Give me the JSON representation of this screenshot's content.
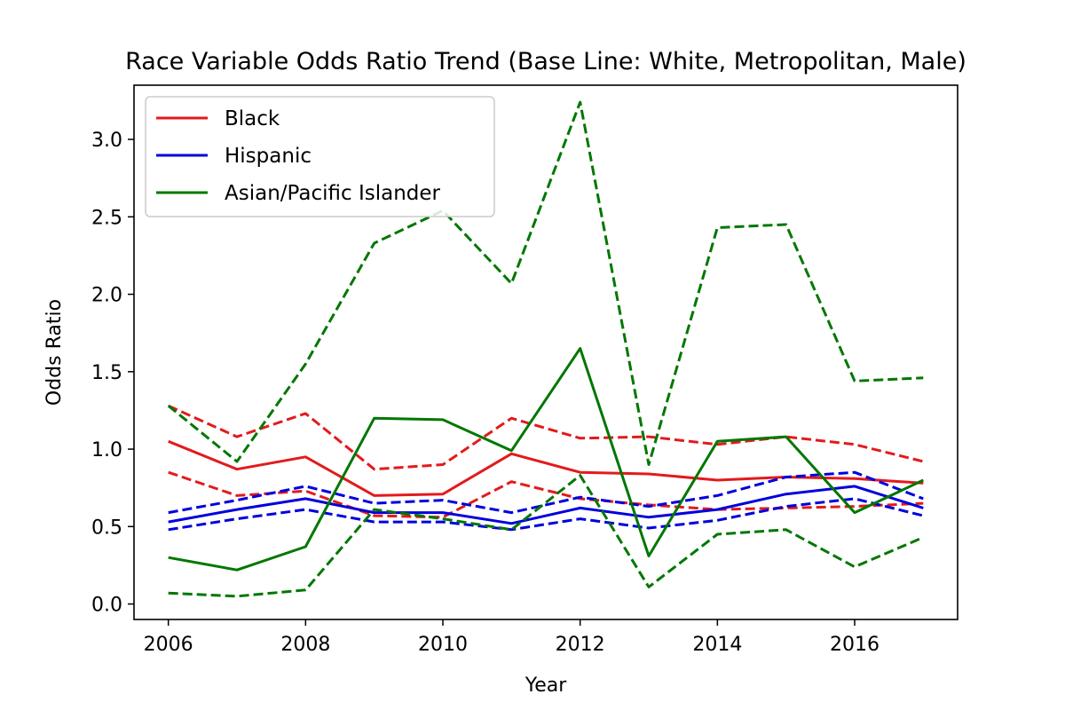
{
  "chart_data": {
    "type": "line",
    "title": "Race Variable Odds Ratio Trend (Base Line: White, Metropolitan, Male)",
    "xlabel": "Year",
    "ylabel": "Odds Ratio",
    "xlim": [
      2005.5,
      2017.5
    ],
    "ylim": [
      -0.1,
      3.35
    ],
    "xticks": [
      2006,
      2008,
      2010,
      2012,
      2014,
      2016
    ],
    "yticks": [
      0.0,
      0.5,
      1.0,
      1.5,
      2.0,
      2.5,
      3.0
    ],
    "xtick_labels": [
      "2006",
      "2008",
      "2010",
      "2012",
      "2014",
      "2016"
    ],
    "ytick_labels": [
      "0.0",
      "0.5",
      "1.0",
      "1.5",
      "2.0",
      "2.5",
      "3.0"
    ],
    "grid": false,
    "legend_position": "top-left",
    "x": [
      2006,
      2007,
      2008,
      2009,
      2010,
      2011,
      2012,
      2013,
      2014,
      2015,
      2016,
      2017
    ],
    "series": [
      {
        "name": "Black",
        "color": "#e31a1c",
        "style": "solid",
        "values": [
          1.05,
          0.87,
          0.95,
          0.7,
          0.71,
          0.97,
          0.85,
          0.84,
          0.8,
          0.82,
          0.81,
          0.78
        ]
      },
      {
        "name": "Black upper",
        "color": "#e31a1c",
        "style": "dashed",
        "values": [
          1.28,
          1.08,
          1.23,
          0.87,
          0.9,
          1.2,
          1.07,
          1.08,
          1.03,
          1.08,
          1.03,
          0.92
        ]
      },
      {
        "name": "Black lower",
        "color": "#e31a1c",
        "style": "dashed",
        "values": [
          0.85,
          0.7,
          0.73,
          0.57,
          0.56,
          0.79,
          0.68,
          0.64,
          0.61,
          0.62,
          0.63,
          0.65
        ]
      },
      {
        "name": "Hispanic",
        "color": "#0000dd",
        "style": "solid",
        "values": [
          0.53,
          0.61,
          0.68,
          0.59,
          0.59,
          0.52,
          0.62,
          0.56,
          0.61,
          0.71,
          0.76,
          0.62
        ]
      },
      {
        "name": "Hispanic upper",
        "color": "#0000dd",
        "style": "dashed",
        "values": [
          0.59,
          0.67,
          0.76,
          0.65,
          0.67,
          0.59,
          0.69,
          0.63,
          0.7,
          0.82,
          0.85,
          0.68
        ]
      },
      {
        "name": "Hispanic lower",
        "color": "#0000dd",
        "style": "dashed",
        "values": [
          0.48,
          0.55,
          0.61,
          0.53,
          0.53,
          0.48,
          0.55,
          0.49,
          0.54,
          0.63,
          0.68,
          0.57
        ]
      },
      {
        "name": "Asian/Pacific Islander",
        "color": "#007700",
        "style": "solid",
        "values": [
          0.3,
          0.22,
          0.37,
          1.2,
          1.19,
          0.99,
          1.65,
          0.31,
          1.05,
          1.08,
          0.59,
          0.8
        ]
      },
      {
        "name": "Asian/Pacific Islander upper",
        "color": "#007700",
        "style": "dashed",
        "values": [
          1.28,
          0.92,
          1.55,
          2.33,
          2.54,
          2.07,
          3.24,
          0.9,
          2.43,
          2.45,
          1.44,
          1.46
        ]
      },
      {
        "name": "Asian/Pacific Islander lower",
        "color": "#007700",
        "style": "dashed",
        "values": [
          0.07,
          0.05,
          0.09,
          0.61,
          0.55,
          0.48,
          0.83,
          0.11,
          0.45,
          0.48,
          0.24,
          0.43
        ]
      }
    ],
    "legend": [
      {
        "label": "Black",
        "color": "#e31a1c"
      },
      {
        "label": "Hispanic",
        "color": "#0000dd"
      },
      {
        "label": "Asian/Pacific Islander",
        "color": "#007700"
      }
    ]
  }
}
